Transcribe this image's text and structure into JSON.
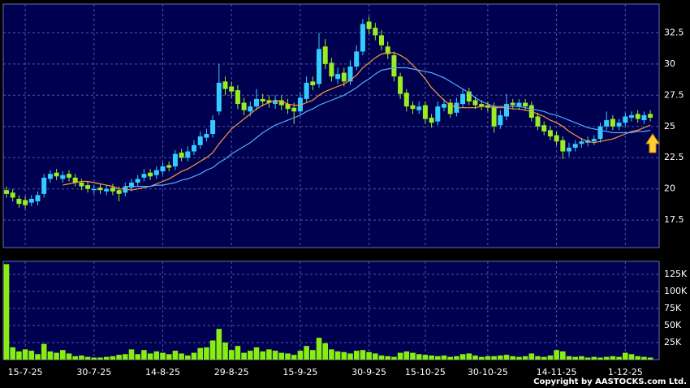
{
  "chart_data": [
    {
      "type": "candlestick",
      "up_color": "#33ccff",
      "down_color": "#99ee22",
      "background": "#000050",
      "grid": true,
      "ylim": [
        15.3,
        34.8
      ],
      "yticks": [
        17.5,
        20,
        22.5,
        25,
        27.5,
        30,
        32.5
      ],
      "open": [
        19.9,
        19.7,
        19.2,
        19.1,
        18.9,
        19.0,
        19.6,
        20.8,
        21.3,
        20.8,
        21.2,
        20.9,
        20.5,
        20.3,
        19.9,
        20.1,
        19.8,
        20.1,
        19.9,
        19.7,
        20.1,
        20.5,
        20.9,
        21.3,
        21.1,
        21.4,
        21.9,
        21.8,
        22.9,
        22.5,
        23.0,
        23.5,
        24.1,
        24.4,
        26.2,
        28.6,
        28.2,
        27.9,
        26.9,
        26.2,
        26.6,
        27.2,
        27.1,
        26.8,
        27.1,
        26.8,
        26.5,
        26.2,
        27.2,
        28.6,
        28.4,
        31.4,
        30.1,
        28.8,
        29.3,
        28.6,
        29.8,
        31.0,
        33.4,
        32.9,
        32.3,
        31.4,
        30.7,
        29.0,
        27.7,
        26.7,
        26.3,
        26.7,
        25.7,
        25.4,
        26.5,
        26.9,
        26.1,
        26.8,
        27.8,
        27.1,
        26.8,
        26.7,
        26.6,
        25.1,
        25.8,
        26.9,
        26.6,
        26.9,
        26.7,
        25.8,
        25.1,
        24.7,
        24.3,
        23.9,
        23.0,
        23.3,
        23.6,
        23.7,
        23.8,
        24.0,
        25.0,
        25.6,
        25.0,
        25.3,
        25.7,
        26.0,
        25.5,
        26.0
      ],
      "high": [
        20.2,
        20.0,
        19.5,
        19.4,
        19.5,
        19.8,
        21.2,
        21.5,
        21.6,
        21.4,
        21.5,
        21.2,
        20.8,
        20.6,
        20.3,
        20.4,
        20.3,
        20.4,
        20.2,
        20.5,
        20.8,
        21.1,
        21.6,
        21.6,
        21.8,
        22.1,
        22.2,
        23.1,
        23.2,
        23.4,
        23.9,
        24.6,
        24.8,
        25.9,
        30.0,
        29.0,
        28.6,
        28.3,
        27.3,
        27.0,
        28.0,
        27.6,
        27.5,
        27.5,
        27.5,
        27.2,
        26.9,
        27.7,
        29.0,
        29.0,
        32.5,
        32.0,
        30.5,
        29.7,
        29.7,
        30.3,
        31.5,
        33.6,
        33.8,
        33.3,
        32.7,
        31.8,
        31.0,
        29.3,
        28.0,
        27.0,
        27.0,
        27.0,
        26.0,
        27.0,
        27.2,
        27.2,
        27.3,
        28.0,
        28.1,
        27.4,
        27.1,
        27.0,
        26.9,
        26.3,
        27.6,
        27.2,
        27.2,
        27.2,
        27.0,
        26.1,
        25.4,
        25.0,
        24.6,
        24.2,
        23.7,
        23.9,
        24.1,
        24.2,
        24.3,
        25.3,
        26.2,
        25.9,
        25.6,
        26.1,
        26.2,
        26.3,
        26.2,
        26.3
      ],
      "low": [
        19.3,
        19.0,
        18.5,
        18.4,
        18.6,
        18.7,
        19.3,
        20.5,
        20.7,
        20.5,
        20.6,
        20.2,
        19.9,
        19.7,
        19.6,
        19.6,
        19.5,
        19.5,
        19.0,
        19.4,
        19.8,
        20.2,
        20.6,
        20.7,
        20.8,
        21.1,
        21.4,
        21.5,
        22.2,
        22.2,
        22.7,
        23.2,
        23.8,
        24.1,
        25.9,
        27.5,
        27.3,
        26.4,
        25.9,
        25.8,
        26.3,
        26.6,
        26.5,
        26.4,
        26.3,
        26.0,
        25.2,
        25.9,
        26.9,
        27.9,
        28.1,
        29.6,
        28.6,
        28.4,
        28.2,
        28.3,
        29.5,
        30.7,
        32.4,
        31.9,
        31.1,
        30.4,
        28.6,
        27.2,
        26.2,
        26.0,
        26.0,
        25.2,
        24.9,
        25.1,
        26.2,
        25.7,
        25.8,
        26.5,
        26.7,
        26.4,
        26.3,
        26.2,
        24.5,
        24.8,
        25.5,
        26.4,
        26.3,
        26.3,
        25.4,
        24.7,
        24.3,
        23.9,
        23.5,
        22.4,
        22.6,
        23.0,
        23.3,
        23.4,
        23.5,
        23.7,
        24.7,
        24.7,
        24.7,
        25.0,
        25.4,
        25.3,
        25.2,
        25.4
      ],
      "close": [
        19.6,
        19.3,
        18.8,
        18.7,
        19.2,
        19.5,
        20.9,
        21.2,
        21.0,
        21.1,
        20.9,
        20.5,
        20.2,
        20.0,
        20.0,
        19.9,
        20.0,
        19.8,
        19.6,
        20.2,
        20.5,
        20.8,
        21.2,
        21.0,
        21.5,
        21.8,
        21.7,
        22.8,
        22.5,
        23.0,
        23.5,
        24.2,
        24.4,
        25.5,
        28.5,
        28.0,
        27.8,
        26.8,
        26.3,
        26.6,
        27.2,
        27.0,
        26.9,
        27.1,
        26.7,
        26.4,
        26.2,
        27.3,
        28.5,
        28.3,
        31.2,
        30.0,
        29.0,
        29.2,
        28.6,
        29.8,
        31.0,
        33.2,
        32.8,
        32.3,
        31.5,
        30.8,
        29.0,
        27.6,
        26.6,
        26.4,
        26.6,
        25.6,
        25.3,
        26.6,
        26.8,
        26.0,
        26.9,
        27.6,
        27.0,
        26.7,
        26.6,
        26.5,
        25.0,
        25.9,
        26.8,
        26.7,
        26.9,
        26.6,
        25.7,
        25.0,
        24.6,
        24.2,
        23.8,
        23.0,
        23.3,
        23.6,
        23.8,
        23.9,
        24.0,
        25.0,
        25.5,
        25.0,
        25.3,
        25.8,
        25.9,
        25.6,
        25.9,
        25.7
      ],
      "series": [
        {
          "color": "#ff9933",
          "values": [
            null,
            null,
            null,
            null,
            null,
            null,
            null,
            null,
            null,
            20.3,
            20.4,
            20.5,
            20.6,
            20.6,
            20.5,
            20.4,
            20.3,
            20.2,
            20.0,
            20.0,
            19.9,
            20.0,
            20.1,
            20.2,
            20.4,
            20.6,
            20.8,
            21.1,
            21.4,
            21.6,
            21.9,
            22.2,
            22.5,
            22.9,
            23.6,
            24.2,
            24.8,
            25.2,
            25.6,
            26.0,
            26.4,
            26.7,
            26.9,
            27.1,
            27.0,
            26.8,
            26.7,
            26.7,
            26.9,
            27.1,
            27.5,
            27.8,
            28.0,
            28.2,
            28.4,
            28.7,
            29.1,
            29.7,
            30.1,
            30.5,
            30.8,
            30.9,
            30.9,
            30.7,
            30.4,
            29.9,
            29.4,
            28.8,
            28.1,
            27.6,
            27.1,
            26.7,
            26.5,
            26.5,
            26.5,
            26.5,
            26.6,
            26.6,
            26.5,
            26.5,
            26.5,
            26.4,
            26.4,
            26.3,
            26.2,
            26.0,
            25.8,
            25.5,
            25.3,
            25.0,
            24.6,
            24.3,
            24.0,
            23.8,
            23.7,
            23.8,
            23.9,
            24.0,
            24.2,
            24.4,
            24.6,
            24.7,
            24.9,
            25.1
          ]
        },
        {
          "color": "#55aaff",
          "values": [
            null,
            null,
            null,
            null,
            null,
            null,
            null,
            null,
            null,
            null,
            null,
            null,
            null,
            null,
            null,
            null,
            null,
            null,
            null,
            20.2,
            20.2,
            20.2,
            20.2,
            20.2,
            20.3,
            20.3,
            20.4,
            20.5,
            20.7,
            20.8,
            21.0,
            21.2,
            21.5,
            21.7,
            22.1,
            22.4,
            22.8,
            23.1,
            23.4,
            23.7,
            24.1,
            24.5,
            24.8,
            25.1,
            25.3,
            25.5,
            25.7,
            25.9,
            26.2,
            26.4,
            26.7,
            26.9,
            27.1,
            27.3,
            27.5,
            27.8,
            28.1,
            28.5,
            28.8,
            29.2,
            29.5,
            29.6,
            29.7,
            29.7,
            29.7,
            29.6,
            29.5,
            29.4,
            29.3,
            29.1,
            28.9,
            28.6,
            28.3,
            28.0,
            27.7,
            27.3,
            27.0,
            26.8,
            26.6,
            26.6,
            26.6,
            26.6,
            26.6,
            26.5,
            26.4,
            26.3,
            26.2,
            26.0,
            25.9,
            25.7,
            25.5,
            25.3,
            25.1,
            24.9,
            24.8,
            24.7,
            24.6,
            24.5,
            24.5,
            24.5,
            24.5,
            24.6,
            24.6,
            24.7
          ]
        }
      ]
    },
    {
      "type": "bar",
      "color": "#88ee11",
      "background": "#000050",
      "grid": true,
      "ylim": [
        0,
        144000
      ],
      "yticks": [
        {
          "value": 25000,
          "label": "25K"
        },
        {
          "value": 50000,
          "label": "50K"
        },
        {
          "value": 75000,
          "label": "75K"
        },
        {
          "value": 100000,
          "label": "100K"
        },
        {
          "value": 125000,
          "label": "125K"
        }
      ],
      "categories": [
        null,
        null,
        null,
        "15-7-25",
        null,
        null,
        null,
        null,
        null,
        null,
        null,
        null,
        null,
        null,
        "30-7-25",
        null,
        null,
        null,
        null,
        null,
        null,
        null,
        null,
        null,
        null,
        "14-8-25",
        null,
        null,
        null,
        null,
        null,
        null,
        null,
        null,
        null,
        null,
        "29-8-25",
        null,
        null,
        null,
        null,
        null,
        null,
        null,
        null,
        null,
        null,
        "15-9-25",
        null,
        null,
        null,
        null,
        null,
        null,
        null,
        null,
        null,
        null,
        "30-9-25",
        null,
        null,
        null,
        null,
        null,
        null,
        null,
        null,
        "15-10-25",
        null,
        null,
        null,
        null,
        null,
        null,
        null,
        null,
        null,
        "30-10-25",
        null,
        null,
        null,
        null,
        null,
        null,
        null,
        null,
        null,
        null,
        "14-11-25",
        null,
        null,
        null,
        null,
        null,
        null,
        null,
        null,
        null,
        null,
        "1-12-25",
        null,
        null,
        null,
        null
      ],
      "values": [
        140000,
        18000,
        12000,
        15000,
        13000,
        8000,
        23000,
        12000,
        10000,
        14000,
        9000,
        5000,
        6000,
        4000,
        3000,
        3000,
        4000,
        5000,
        7000,
        8000,
        15000,
        8000,
        14000,
        9000,
        12000,
        10000,
        8000,
        13000,
        9000,
        6000,
        10000,
        17000,
        18000,
        28000,
        45000,
        25000,
        14000,
        20000,
        10000,
        13000,
        18000,
        12000,
        15000,
        13000,
        10000,
        9000,
        7000,
        13000,
        20000,
        14000,
        32000,
        24000,
        15000,
        12000,
        11000,
        9000,
        13000,
        14000,
        11000,
        9000,
        6000,
        5000,
        4000,
        10000,
        12000,
        10000,
        8000,
        7000,
        6000,
        5000,
        6000,
        4000,
        5000,
        8000,
        9000,
        6000,
        4000,
        5000,
        5000,
        6000,
        7000,
        5000,
        4000,
        5000,
        9000,
        5000,
        4000,
        6000,
        14000,
        12000,
        5000,
        4000,
        5000,
        3000,
        4000,
        3000,
        4000,
        5000,
        4000,
        10000,
        8000,
        5000,
        4000,
        3000
      ]
    }
  ],
  "footer": "Copyright by AASTOCKS.com Ltd."
}
